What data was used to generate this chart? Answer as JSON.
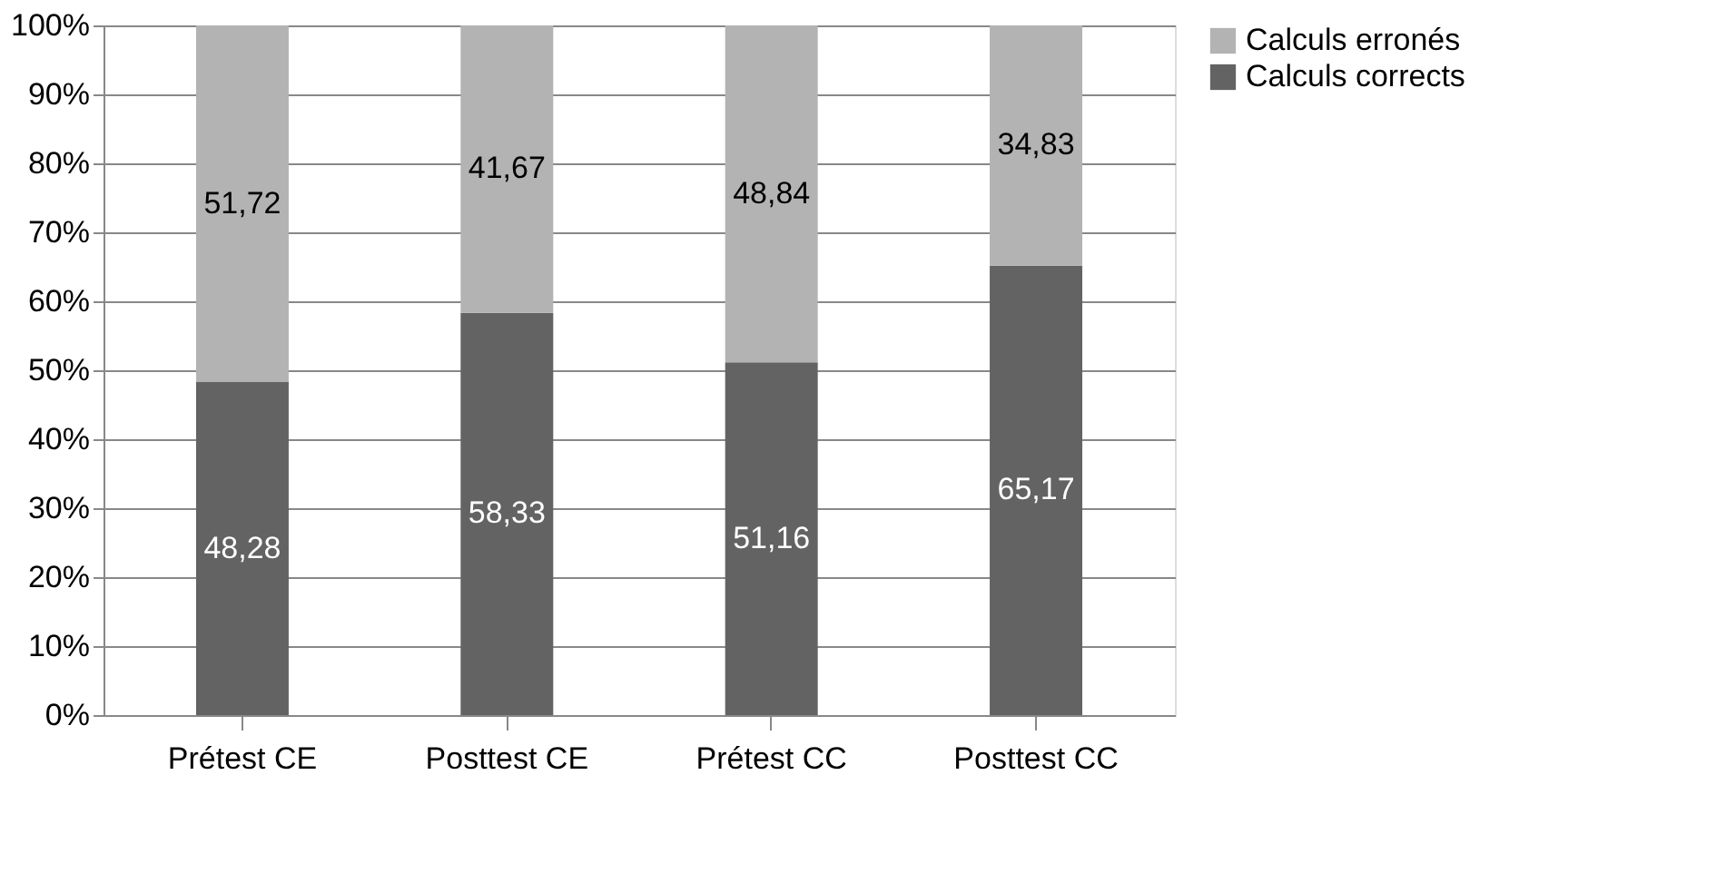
{
  "chart_data": {
    "type": "bar",
    "stacked": true,
    "categories": [
      "Prétest CE",
      "Posttest CE",
      "Prétest CC",
      "Posttest CC"
    ],
    "series": [
      {
        "name": "Calculs corrects",
        "color": "#636363",
        "values": [
          48.28,
          58.33,
          51.16,
          65.17
        ],
        "value_labels": [
          "48,28",
          "58,33",
          "51,16",
          "65,17"
        ]
      },
      {
        "name": "Calculs erronés",
        "color": "#b3b3b3",
        "values": [
          51.72,
          41.67,
          48.84,
          34.83
        ],
        "value_labels": [
          "51,72",
          "41,67",
          "48,84",
          "34,83"
        ]
      }
    ],
    "ylim": [
      0,
      100
    ],
    "yticks": [
      {
        "value": 0,
        "label": "0%"
      },
      {
        "value": 10,
        "label": "10%"
      },
      {
        "value": 20,
        "label": "20%"
      },
      {
        "value": 30,
        "label": "30%"
      },
      {
        "value": 40,
        "label": "40%"
      },
      {
        "value": 50,
        "label": "50%"
      },
      {
        "value": 60,
        "label": "60%"
      },
      {
        "value": 70,
        "label": "70%"
      },
      {
        "value": 80,
        "label": "80%"
      },
      {
        "value": 90,
        "label": "90%"
      },
      {
        "value": 100,
        "label": "100%"
      }
    ],
    "grid": "y",
    "legend": "right"
  }
}
